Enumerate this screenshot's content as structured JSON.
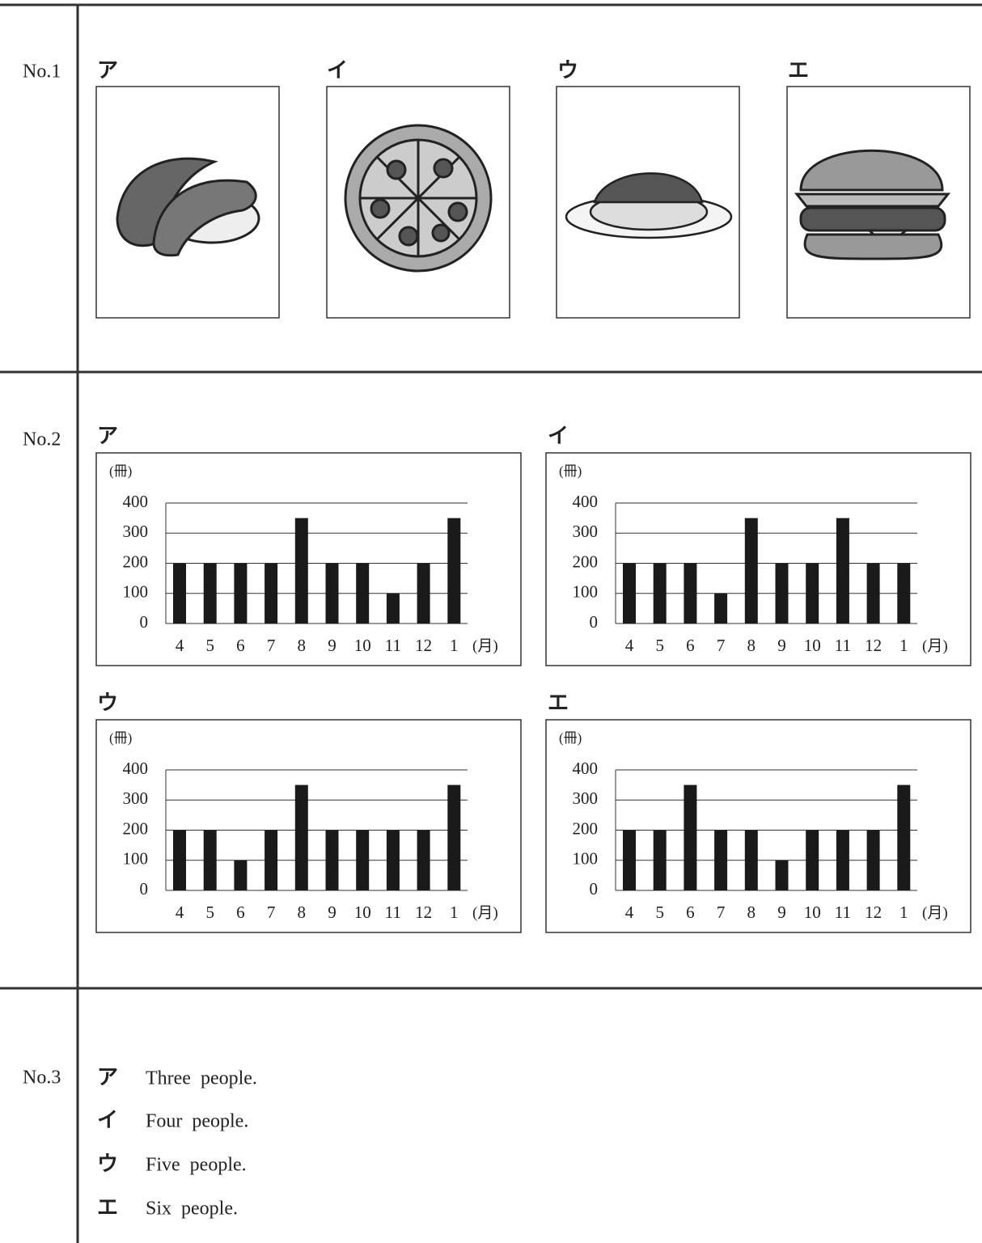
{
  "no1": {
    "label": "No.1",
    "options": [
      "ア",
      "イ",
      "ウ",
      "エ"
    ]
  },
  "no2": {
    "label": "No.2",
    "options": [
      "ア",
      "イ",
      "ウ",
      "エ"
    ]
  },
  "chart_data": [
    {
      "type": "bar",
      "y_label": "(冊)",
      "x_label": "(月)",
      "categories": [
        "4",
        "5",
        "6",
        "7",
        "8",
        "9",
        "10",
        "11",
        "12",
        "1"
      ],
      "values": [
        200,
        200,
        200,
        200,
        350,
        200,
        200,
        100,
        200,
        350
      ],
      "color": "#1a1a1a",
      "ylim": [
        0,
        400
      ],
      "yticks": [
        0,
        100,
        200,
        300,
        400
      ],
      "grid": true
    },
    {
      "type": "bar",
      "y_label": "(冊)",
      "x_label": "(月)",
      "categories": [
        "4",
        "5",
        "6",
        "7",
        "8",
        "9",
        "10",
        "11",
        "12",
        "1"
      ],
      "values": [
        200,
        200,
        200,
        100,
        350,
        200,
        200,
        350,
        200,
        200
      ],
      "color": "#1a1a1a",
      "ylim": [
        0,
        400
      ],
      "yticks": [
        0,
        100,
        200,
        300,
        400
      ],
      "grid": true
    },
    {
      "type": "bar",
      "y_label": "(冊)",
      "x_label": "(月)",
      "categories": [
        "4",
        "5",
        "6",
        "7",
        "8",
        "9",
        "10",
        "11",
        "12",
        "1"
      ],
      "values": [
        200,
        200,
        100,
        200,
        350,
        200,
        200,
        200,
        200,
        350
      ],
      "color": "#1a1a1a",
      "ylim": [
        0,
        400
      ],
      "yticks": [
        0,
        100,
        200,
        300,
        400
      ],
      "grid": true
    },
    {
      "type": "bar",
      "y_label": "(冊)",
      "x_label": "(月)",
      "categories": [
        "4",
        "5",
        "6",
        "7",
        "8",
        "9",
        "10",
        "11",
        "12",
        "1"
      ],
      "values": [
        200,
        200,
        350,
        200,
        200,
        100,
        200,
        200,
        200,
        350
      ],
      "color": "#1a1a1a",
      "ylim": [
        0,
        400
      ],
      "yticks": [
        0,
        100,
        200,
        300,
        400
      ],
      "grid": true
    }
  ],
  "no3": {
    "label": "No.3",
    "options": [
      {
        "mark": "ア",
        "text": "Three people."
      },
      {
        "mark": "イ",
        "text": "Four people."
      },
      {
        "mark": "ウ",
        "text": "Five people."
      },
      {
        "mark": "エ",
        "text": "Six people."
      }
    ]
  }
}
